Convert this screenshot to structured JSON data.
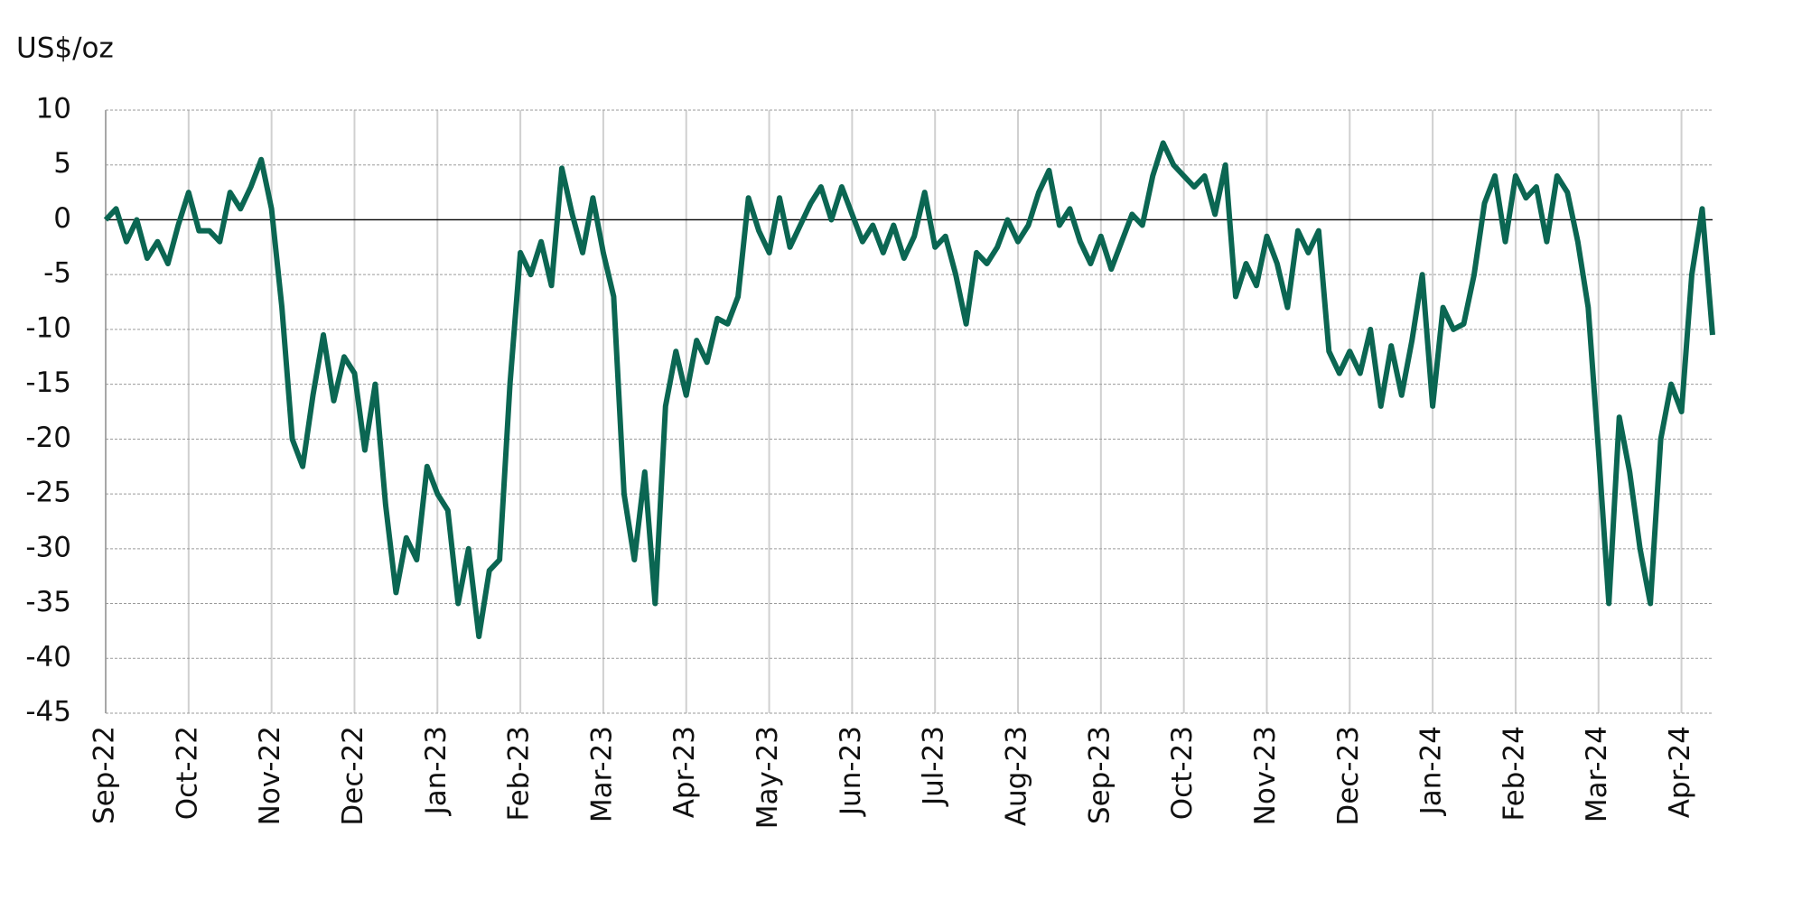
{
  "chart_data": {
    "type": "line",
    "y_label": "US$/oz",
    "categories": [
      "Sep-22",
      null,
      null,
      null,
      null,
      null,
      null,
      null,
      "Oct-22",
      null,
      null,
      null,
      null,
      null,
      null,
      null,
      "Nov-22",
      null,
      null,
      null,
      null,
      null,
      null,
      null,
      "Dec-22",
      null,
      null,
      null,
      null,
      null,
      null,
      null,
      "Jan-23",
      null,
      null,
      null,
      null,
      null,
      null,
      null,
      "Feb-23",
      null,
      null,
      null,
      null,
      null,
      null,
      null,
      "Mar-23",
      null,
      null,
      null,
      null,
      null,
      null,
      null,
      "Apr-23",
      null,
      null,
      null,
      null,
      null,
      null,
      null,
      "May-23",
      null,
      null,
      null,
      null,
      null,
      null,
      null,
      "Jun-23",
      null,
      null,
      null,
      null,
      null,
      null,
      null,
      "Jul-23",
      null,
      null,
      null,
      null,
      null,
      null,
      null,
      "Aug-23",
      null,
      null,
      null,
      null,
      null,
      null,
      null,
      "Sep-23",
      null,
      null,
      null,
      null,
      null,
      null,
      null,
      "Oct-23",
      null,
      null,
      null,
      null,
      null,
      null,
      null,
      "Nov-23",
      null,
      null,
      null,
      null,
      null,
      null,
      null,
      "Dec-23",
      null,
      null,
      null,
      null,
      null,
      null,
      null,
      "Jan-24",
      null,
      null,
      null,
      null,
      null,
      null,
      null,
      "Feb-24",
      null,
      null,
      null,
      null,
      null,
      null,
      null,
      "Mar-24",
      null,
      null,
      null,
      null,
      null,
      null,
      null,
      "Apr-24",
      null,
      null,
      null
    ],
    "series": [
      {
        "color": "#0b6652",
        "values": [
          0,
          1,
          -2,
          0,
          -3.5,
          -2,
          -4,
          -0.5,
          2.5,
          -1,
          -1,
          -2,
          2.5,
          1,
          3,
          5.5,
          1,
          -8,
          -20,
          -22.5,
          -16,
          -10.5,
          -16.5,
          -12.5,
          -14,
          -21,
          -15,
          -26,
          -34,
          -29,
          -31,
          -22.5,
          -25,
          -26.5,
          -35,
          -30,
          -38,
          -32,
          -31,
          -15,
          -3,
          -5,
          -2,
          -6,
          4.7,
          0.5,
          -3,
          2,
          -3,
          -7,
          -25,
          -31,
          -23,
          -35,
          -17,
          -12,
          -16,
          -11,
          -13,
          -9,
          -9.5,
          -7,
          2,
          -1,
          -3,
          2,
          -2.5,
          -0.5,
          1.5,
          3,
          0,
          3,
          0.5,
          -2,
          -0.5,
          -3,
          -0.5,
          -3.5,
          -1.5,
          2.5,
          -2.5,
          -1.5,
          -5,
          -9.5,
          -3,
          -4,
          -2.5,
          0,
          -2,
          -0.5,
          2.5,
          4.5,
          -0.5,
          1,
          -2,
          -4,
          -1.5,
          -4.5,
          -2,
          0.5,
          -0.5,
          4,
          7,
          5,
          4,
          3,
          4,
          0.5,
          5,
          -7,
          -4,
          -6,
          -1.5,
          -4,
          -8,
          -1,
          -3,
          -1,
          -12,
          -14,
          -12,
          -14,
          -10,
          -17,
          -11.5,
          -16,
          -11,
          -5,
          -17,
          -8,
          -10,
          -9.5,
          -5,
          1.5,
          4,
          -2,
          4,
          2,
          3,
          -2,
          4,
          2.5,
          -2,
          -8,
          -21,
          -35,
          -18,
          -23,
          -30,
          -35,
          -20,
          -15,
          -17.5,
          -5,
          1,
          -10.5
        ]
      }
    ],
    "ylim": [
      -45,
      10
    ],
    "yticks": [
      -45,
      -40,
      -35,
      -30,
      -25,
      -20,
      -15,
      -10,
      -5,
      0,
      5,
      10
    ],
    "grid": true,
    "zero_line": true
  }
}
